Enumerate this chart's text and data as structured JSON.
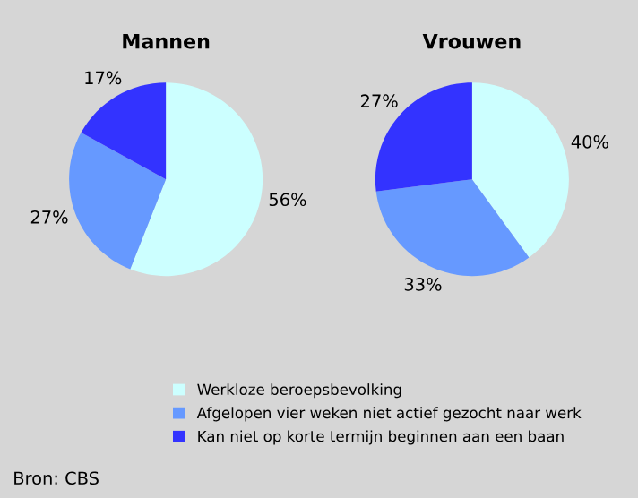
{
  "chart_data": [
    {
      "type": "pie",
      "title": "Mannen",
      "categories": [
        "Werkloze beroepsbevolking",
        "Afgelopen vier weken niet actief gezocht naar werk",
        "Kan niet op korte termijn beginnen aan een baan"
      ],
      "values": [
        56,
        27,
        17
      ],
      "colors": [
        "#ccffff",
        "#6699ff",
        "#3333ff"
      ],
      "value_labels": [
        "56%",
        "27%",
        "17%"
      ],
      "legend": "bottom"
    },
    {
      "type": "pie",
      "title": "Vrouwen",
      "categories": [
        null,
        null,
        null
      ],
      "values": [
        40,
        33,
        27
      ],
      "colors": [
        "#ccffff",
        "#6699ff",
        "#3333ff"
      ],
      "value_labels": [
        "40%",
        "33%",
        "27%"
      ],
      "annotations": [
        "Bron: CBS"
      ]
    }
  ]
}
